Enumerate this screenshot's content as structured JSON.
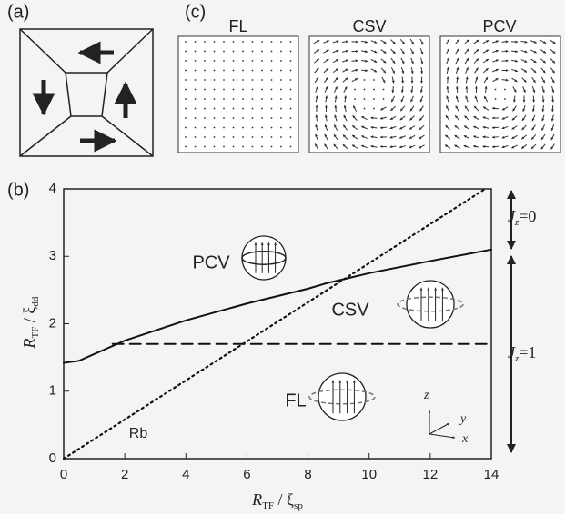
{
  "panel_labels": [
    "(a)",
    "(b)",
    "(c)"
  ],
  "panel_c_titles": [
    "FL",
    "CSV",
    "PCV"
  ],
  "chart_data": {
    "type": "line",
    "x_label": [
      "R",
      "TF",
      " / ξ",
      "sp"
    ],
    "y_label": [
      "R",
      "TF",
      " / ξ",
      "dd"
    ],
    "xlim": [
      0,
      14
    ],
    "ylim": [
      0,
      4
    ],
    "xticks": [
      0,
      2,
      4,
      6,
      8,
      10,
      12,
      14
    ],
    "yticks": [
      0,
      1,
      2,
      3,
      4
    ],
    "series": [
      {
        "color": "#111111",
        "style": "solid",
        "x": [
          0,
          0.5,
          2,
          4,
          6,
          8,
          8.6,
          10,
          12,
          14
        ],
        "values": [
          1.42,
          1.45,
          1.75,
          2.05,
          2.3,
          2.52,
          2.6,
          2.75,
          2.93,
          3.1
        ]
      },
      {
        "color": "#111111",
        "style": "dashed",
        "x": [
          1.6,
          14
        ],
        "values": [
          1.7,
          1.7
        ]
      },
      {
        "color": "#111111",
        "style": "dotted",
        "x": [
          0,
          13.8
        ],
        "values": [
          0,
          4
        ]
      }
    ],
    "annotations": [
      "PCV",
      "CSV",
      "FL",
      "Rb"
    ],
    "jz_labels": [
      [
        "J",
        "z",
        "=0"
      ],
      [
        "J",
        "z",
        "=1"
      ]
    ],
    "triad_labels": [
      "z",
      "y",
      "x"
    ]
  }
}
